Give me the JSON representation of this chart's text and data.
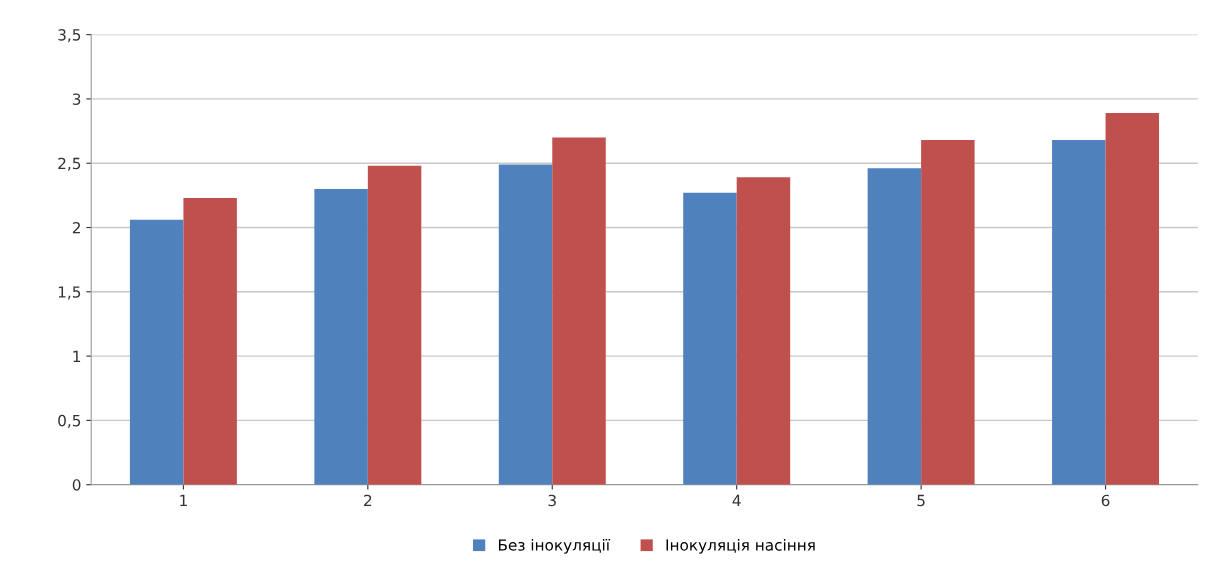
{
  "chart_data": {
    "type": "bar",
    "categories": [
      "1",
      "2",
      "3",
      "4",
      "5",
      "6"
    ],
    "series": [
      {
        "name": "Без інокуляції",
        "color": "#4f81bd",
        "values": [
          2.06,
          2.3,
          2.49,
          2.27,
          2.46,
          2.68
        ]
      },
      {
        "name": "Інокуляція насіння",
        "color": "#c0504d",
        "values": [
          2.23,
          2.48,
          2.7,
          2.39,
          2.68,
          2.89
        ]
      }
    ],
    "ylim": [
      0,
      3.5
    ],
    "yticks": [
      0,
      {
        "value": 0.5,
        "label": "0,5"
      },
      1,
      {
        "value": 1.5,
        "label": "1,5"
      },
      2,
      {
        "value": 2.5,
        "label": "2,5"
      },
      3,
      {
        "value": 3.5,
        "label": "3,5"
      }
    ],
    "grid": "y",
    "legend": "bottom"
  }
}
